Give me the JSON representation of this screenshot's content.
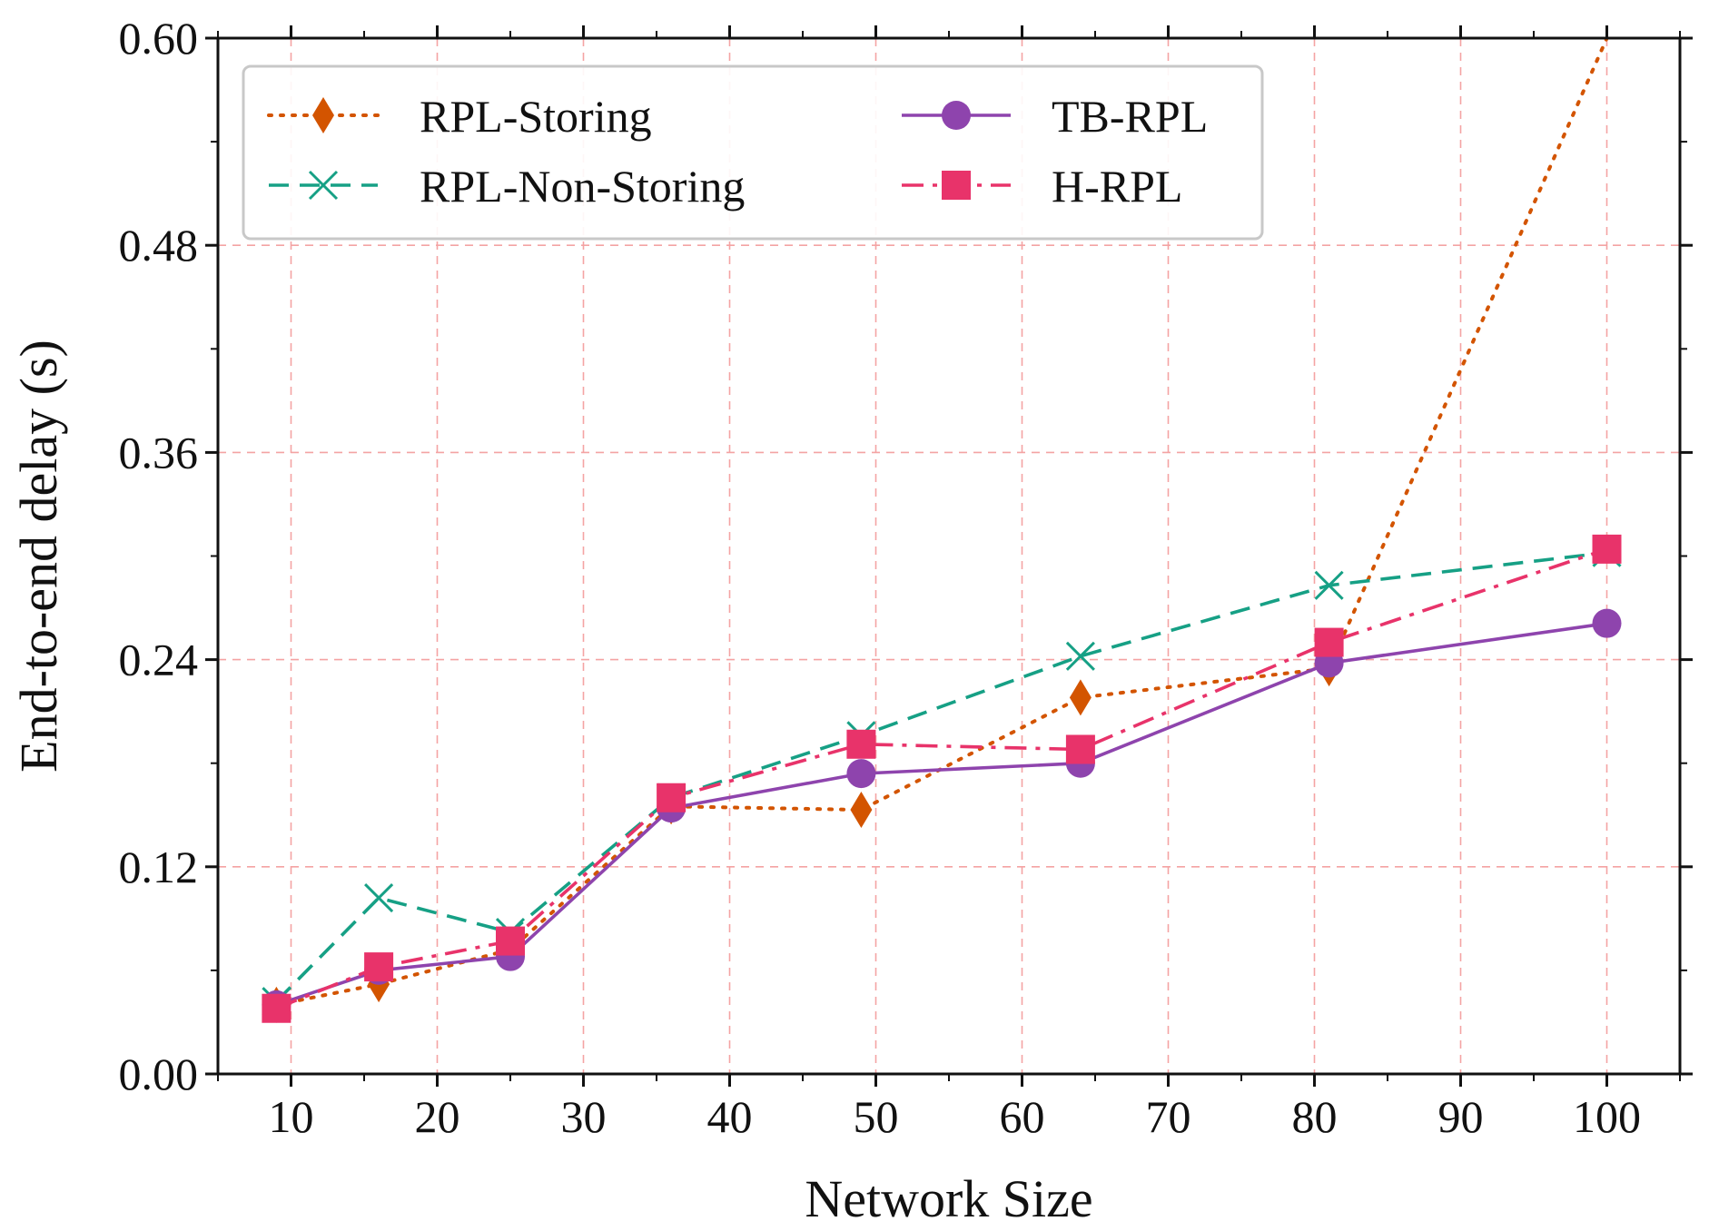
{
  "chart_data": {
    "type": "line",
    "title": "",
    "xlabel": "Network Size",
    "ylabel": "End-to-end delay (s)",
    "xlim": [
      5,
      105
    ],
    "ylim": [
      0,
      0.6
    ],
    "xticks": [
      10,
      20,
      30,
      40,
      50,
      60,
      70,
      80,
      90,
      100
    ],
    "xtick_labels": [
      "10",
      "20",
      "30",
      "40",
      "50",
      "60",
      "70",
      "80",
      "90",
      "100"
    ],
    "yticks": [
      0,
      0.12,
      0.24,
      0.36,
      0.48,
      0.6
    ],
    "ytick_labels": [
      "0.00",
      "0.12",
      "0.24",
      "0.36",
      "0.48",
      "0.60"
    ],
    "grid": true,
    "legend_position": "top-left",
    "x": [
      9,
      16,
      25,
      36,
      49,
      64,
      81,
      100
    ],
    "series": [
      {
        "name": "RPL-Storing",
        "color": "#d35400",
        "marker": "diamond",
        "linestyle": "dotted",
        "values": [
          0.04,
          0.052,
          0.072,
          0.155,
          0.153,
          0.218,
          0.235,
          0.6
        ]
      },
      {
        "name": "RPL-Non-Storing",
        "color": "#16a085",
        "marker": "x",
        "linestyle": "dashed",
        "values": [
          0.042,
          0.102,
          0.082,
          0.16,
          0.196,
          0.242,
          0.283,
          0.302
        ]
      },
      {
        "name": "TB-RPL",
        "color": "#8e44ad",
        "marker": "circle",
        "linestyle": "solid",
        "values": [
          0.04,
          0.06,
          0.068,
          0.154,
          0.174,
          0.18,
          0.238,
          0.261
        ]
      },
      {
        "name": "H-RPL",
        "color": "#e8336a",
        "marker": "square",
        "linestyle": "dashdot",
        "values": [
          0.038,
          0.062,
          0.077,
          0.16,
          0.191,
          0.188,
          0.25,
          0.304
        ]
      }
    ]
  }
}
